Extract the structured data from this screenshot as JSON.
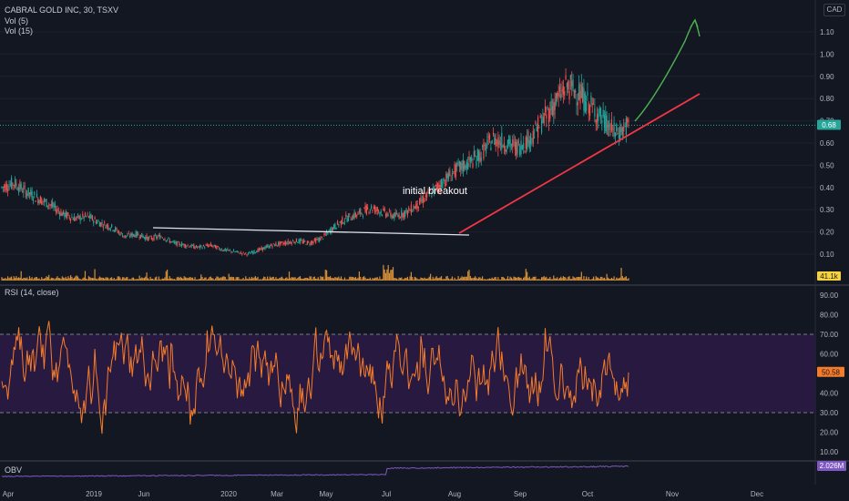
{
  "chart_data": {
    "type": "candlestick",
    "symbol_line": "CABRAL GOLD INC, 30, TSXV",
    "currency": "CAD",
    "legends": [
      "Vol (5)",
      "Vol (15)"
    ],
    "price_axis": {
      "ticks": [
        "1.10",
        "1.00",
        "0.90",
        "0.80",
        "0.70",
        "0.60",
        "0.50",
        "0.40",
        "0.30",
        "0.20",
        "0.10"
      ],
      "tick_values": [
        1.1,
        1.0,
        0.9,
        0.8,
        0.7,
        0.6,
        0.5,
        0.4,
        0.3,
        0.2,
        0.1
      ],
      "range": [
        0.0,
        1.2
      ]
    },
    "last_price": {
      "label": "0.68",
      "value": 0.68
    },
    "volume_badge": "41.1k",
    "x_axis": {
      "labels": [
        "Apr",
        "2019",
        "Jun",
        "2020",
        "Mar",
        "May",
        "Jul",
        "Aug",
        "Sep",
        "Oct",
        "Nov",
        "Dec"
      ]
    },
    "price_path": [
      [
        0.4,
        0.42
      ],
      [
        0.42,
        0.38
      ],
      [
        0.38,
        0.35
      ],
      [
        0.35,
        0.32
      ],
      [
        0.32,
        0.28
      ],
      [
        0.28,
        0.26
      ],
      [
        0.26,
        0.27
      ],
      [
        0.27,
        0.24
      ],
      [
        0.24,
        0.22
      ],
      [
        0.22,
        0.18
      ],
      [
        0.18,
        0.19
      ],
      [
        0.19,
        0.17
      ],
      [
        0.17,
        0.18
      ],
      [
        0.18,
        0.15
      ],
      [
        0.15,
        0.14
      ],
      [
        0.14,
        0.13
      ],
      [
        0.13,
        0.14
      ],
      [
        0.14,
        0.12
      ],
      [
        0.12,
        0.11
      ],
      [
        0.11,
        0.1
      ],
      [
        0.1,
        0.12
      ],
      [
        0.12,
        0.14
      ],
      [
        0.14,
        0.15
      ],
      [
        0.15,
        0.16
      ],
      [
        0.16,
        0.15
      ],
      [
        0.15,
        0.17
      ],
      [
        0.17,
        0.22
      ],
      [
        0.22,
        0.26
      ],
      [
        0.26,
        0.28
      ],
      [
        0.28,
        0.31
      ],
      [
        0.31,
        0.29
      ],
      [
        0.29,
        0.27
      ],
      [
        0.27,
        0.29
      ],
      [
        0.29,
        0.33
      ],
      [
        0.33,
        0.38
      ],
      [
        0.38,
        0.43
      ],
      [
        0.43,
        0.48
      ],
      [
        0.48,
        0.51
      ],
      [
        0.51,
        0.55
      ],
      [
        0.55,
        0.62
      ],
      [
        0.62,
        0.6
      ],
      [
        0.6,
        0.58
      ],
      [
        0.58,
        0.62
      ],
      [
        0.62,
        0.7
      ],
      [
        0.7,
        0.78
      ],
      [
        0.78,
        0.86
      ],
      [
        0.86,
        0.82
      ],
      [
        0.82,
        0.76
      ],
      [
        0.76,
        0.7
      ],
      [
        0.7,
        0.64
      ],
      [
        0.64,
        0.68
      ]
    ],
    "trendlines": [
      {
        "name": "resistance",
        "color": "#ffffff",
        "from": [
          0.2
        ],
        "to": [
          0.18
        ]
      },
      {
        "name": "support",
        "color": "#f23645"
      }
    ],
    "projection_color": "#4caf50",
    "annotation": "initial breakout",
    "rsi": {
      "legend": "RSI (14, close)",
      "ticks": [
        "90.00",
        "80.00",
        "70.00",
        "60.00",
        "40.00",
        "30.00",
        "20.00",
        "10.00"
      ],
      "tick_values": [
        90,
        80,
        70,
        60,
        40,
        30,
        20,
        10
      ],
      "range": [
        5,
        95
      ],
      "upper_band": 70,
      "lower_band": 30,
      "current": {
        "label": "50.58",
        "value": 50.58
      },
      "color": "#f57c2a"
    },
    "obv": {
      "legend": "OBV",
      "current_label": "2.026M",
      "color": "#7e57c2"
    },
    "colors": {
      "up": "#26a69a",
      "down": "#ef5350",
      "volume": "#f7a43c",
      "badge_price": "#26a69a",
      "badge_rsi": "#f57c2a",
      "badge_obv": "#7e57c2",
      "badge_vol": "#f7d23c"
    }
  }
}
